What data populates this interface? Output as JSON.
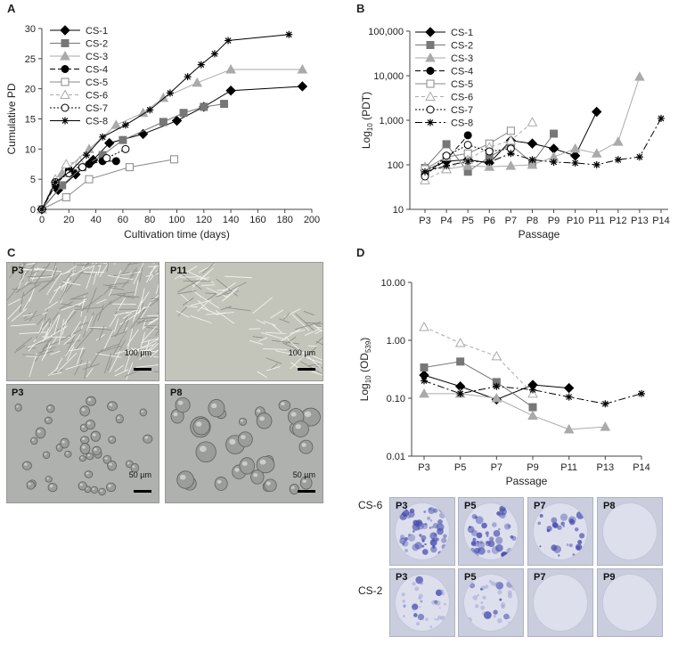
{
  "panel_letters": {
    "a": "A",
    "b": "B",
    "c": "C",
    "d": "D"
  },
  "chart_data": [
    {
      "panel": "A",
      "type": "line",
      "xlabel": "Cultivation time (days)",
      "ylabel": "Cumulative PD",
      "xlim": [
        0,
        200
      ],
      "ylim": [
        0,
        30
      ],
      "xticks": [
        0,
        20,
        40,
        60,
        80,
        100,
        120,
        140,
        160,
        180,
        200
      ],
      "yticks": [
        0,
        5,
        10,
        15,
        20,
        25,
        30
      ],
      "legend": "top-left",
      "series": [
        {
          "name": "CS-1",
          "marker": "diamond-filled",
          "color": "#000000",
          "dash": "",
          "x": [
            0,
            12,
            25,
            38,
            50,
            75,
            100,
            120,
            140,
            193
          ],
          "y": [
            0,
            3.2,
            5.8,
            8.2,
            11,
            12.5,
            14.7,
            17,
            19.7,
            20.4
          ]
        },
        {
          "name": "CS-2",
          "marker": "square-filled",
          "color": "#777777",
          "dash": "",
          "x": [
            0,
            15,
            30,
            45,
            60,
            90,
            105,
            120,
            135
          ],
          "y": [
            0,
            4,
            7,
            9,
            11.5,
            14.5,
            16,
            17,
            17.5
          ]
        },
        {
          "name": "CS-3",
          "marker": "triangle-filled",
          "color": "#aaaaaa",
          "dash": "",
          "x": [
            0,
            15,
            35,
            55,
            75,
            90,
            115,
            140,
            193
          ],
          "y": [
            0,
            6,
            10,
            14,
            16,
            18.5,
            21,
            23.2,
            23.2
          ]
        },
        {
          "name": "CS-4",
          "marker": "circle-filled",
          "color": "#000000",
          "dash": "6,3",
          "x": [
            0,
            10,
            20,
            35,
            45,
            55
          ],
          "y": [
            0,
            4,
            6.5,
            7.5,
            8,
            8
          ]
        },
        {
          "name": "CS-5",
          "marker": "square-open",
          "color": "#888888",
          "dash": "",
          "x": [
            0,
            18,
            35,
            65,
            98
          ],
          "y": [
            0,
            2,
            5,
            7,
            8.3
          ]
        },
        {
          "name": "CS-6",
          "marker": "triangle-open",
          "color": "#aaaaaa",
          "dash": "4,3",
          "x": [
            0,
            10,
            18,
            28
          ],
          "y": [
            0,
            5,
            7.5,
            8
          ]
        },
        {
          "name": "CS-7",
          "marker": "circle-open",
          "color": "#000000",
          "dash": "2,2",
          "x": [
            0,
            10,
            20,
            30,
            48,
            62
          ],
          "y": [
            0,
            4.5,
            6,
            7,
            8.5,
            10
          ]
        },
        {
          "name": "CS-8",
          "marker": "asterisk",
          "color": "#000000",
          "dash": "",
          "x": [
            0,
            10,
            22,
            33,
            45,
            62,
            80,
            95,
            108,
            118,
            128,
            138,
            183
          ],
          "y": [
            0,
            4.5,
            6.5,
            9,
            12,
            14,
            16.5,
            19.3,
            22,
            24,
            25.8,
            28,
            29
          ]
        }
      ]
    },
    {
      "panel": "B",
      "type": "line",
      "xlabel": "Passage",
      "ylabel": "Log10 (PDT)",
      "ylabel_parts": {
        "pre": "Log",
        "sub": "10",
        "post": " (PDT)"
      },
      "yscale": "log",
      "ylim": [
        10,
        100000
      ],
      "categories": [
        "P3",
        "P4",
        "P5",
        "P6",
        "P7",
        "P8",
        "P9",
        "P10",
        "P11",
        "P12",
        "P13",
        "P14"
      ],
      "yticks": [
        10,
        100,
        1000,
        10000,
        100000
      ],
      "ytick_labels": [
        "10",
        "100",
        "1,000",
        "10,000",
        "100,000"
      ],
      "legend": "top-left",
      "series": [
        {
          "name": "CS-1",
          "marker": "diamond-filled",
          "color": "#000000",
          "dash": "",
          "values": [
            75,
            120,
            130,
            110,
            350,
            300,
            230,
            160,
            1550,
            null,
            null,
            null
          ]
        },
        {
          "name": "CS-2",
          "marker": "square-filled",
          "color": "#777777",
          "dash": "",
          "values": [
            85,
            290,
            70,
            150,
            280,
            110,
            500,
            null,
            null,
            null,
            null,
            null
          ]
        },
        {
          "name": "CS-3",
          "marker": "triangle-filled",
          "color": "#aaaaaa",
          "dash": "",
          "values": [
            90,
            80,
            95,
            90,
            95,
            100,
            150,
            230,
            180,
            330,
            9500,
            null
          ]
        },
        {
          "name": "CS-4",
          "marker": "circle-filled",
          "color": "#000000",
          "dash": "6,3",
          "values": [
            60,
            130,
            460,
            null,
            null,
            null,
            null,
            null,
            null,
            null,
            null,
            null
          ]
        },
        {
          "name": "CS-5",
          "marker": "square-open",
          "color": "#888888",
          "dash": "",
          "values": [
            80,
            150,
            180,
            300,
            580,
            null,
            null,
            null,
            null,
            null,
            null,
            null
          ]
        },
        {
          "name": "CS-6",
          "marker": "triangle-open",
          "color": "#aaaaaa",
          "dash": "4,3",
          "values": [
            45,
            80,
            130,
            250,
            350,
            900,
            null,
            null,
            null,
            null,
            null,
            null
          ]
        },
        {
          "name": "CS-7",
          "marker": "circle-open",
          "color": "#000000",
          "dash": "2,2",
          "values": [
            55,
            160,
            280,
            200,
            230,
            null,
            null,
            null,
            null,
            null,
            null,
            null
          ]
        },
        {
          "name": "CS-8",
          "marker": "asterisk",
          "color": "#000000",
          "dash": "8,3,2,3",
          "values": [
            70,
            95,
            120,
            115,
            180,
            130,
            115,
            110,
            100,
            130,
            150,
            1100
          ]
        }
      ]
    },
    {
      "panel": "D",
      "type": "line",
      "xlabel": "Passage",
      "ylabel": "Log10 (OD539)",
      "ylabel_parts": {
        "pre": "Log",
        "sub": "10",
        "mid": " (OD",
        "sub2": "539",
        "post": ")"
      },
      "yscale": "log",
      "ylim": [
        0.01,
        10
      ],
      "categories": [
        "P3",
        "P5",
        "P7",
        "P9",
        "P11",
        "P13",
        "P14"
      ],
      "yticks": [
        0.01,
        0.1,
        1,
        10
      ],
      "ytick_labels": [
        "0.01",
        "0.10",
        "1.00",
        "10.00"
      ],
      "series": [
        {
          "marker": "diamond-filled",
          "color": "#000000",
          "dash": "",
          "values": [
            0.25,
            0.16,
            0.095,
            0.17,
            0.15,
            null,
            null
          ]
        },
        {
          "marker": "square-filled",
          "color": "#777777",
          "dash": "",
          "values": [
            0.34,
            0.43,
            0.19,
            0.07,
            null,
            null,
            null
          ]
        },
        {
          "marker": "triangle-filled",
          "color": "#aaaaaa",
          "dash": "",
          "values": [
            0.12,
            0.12,
            0.1,
            0.05,
            0.029,
            0.032,
            null
          ]
        },
        {
          "marker": "triangle-open",
          "color": "#aaaaaa",
          "dash": "4,3",
          "values": [
            1.7,
            0.9,
            0.53,
            0.12,
            null,
            null,
            null
          ]
        },
        {
          "marker": "asterisk",
          "color": "#000000",
          "dash": "8,3,2,3",
          "values": [
            0.2,
            0.12,
            0.16,
            0.14,
            0.105,
            0.08,
            0.12
          ]
        }
      ]
    }
  ],
  "panel_c": {
    "photos": [
      {
        "label": "P3",
        "scale": "100 µm",
        "kind": "fibroblast-dense"
      },
      {
        "label": "P11",
        "scale": "100 µm",
        "kind": "fibroblast-sparse"
      },
      {
        "label": "P3",
        "scale": "50 µm",
        "kind": "round-small"
      },
      {
        "label": "P8",
        "scale": "50 µm",
        "kind": "round-large"
      }
    ]
  },
  "panel_d_dishes": {
    "rows": [
      {
        "label": "CS-6",
        "dishes": [
          {
            "label": "P3",
            "stain": 0.9
          },
          {
            "label": "P5",
            "stain": 0.65
          },
          {
            "label": "P7",
            "stain": 0.4
          },
          {
            "label": "P8",
            "stain": 0.0
          }
        ]
      },
      {
        "label": "CS-2",
        "dishes": [
          {
            "label": "P3",
            "stain": 0.12
          },
          {
            "label": "P5",
            "stain": 0.12
          },
          {
            "label": "P7",
            "stain": 0.0
          },
          {
            "label": "P9",
            "stain": 0.0
          }
        ]
      }
    ]
  }
}
